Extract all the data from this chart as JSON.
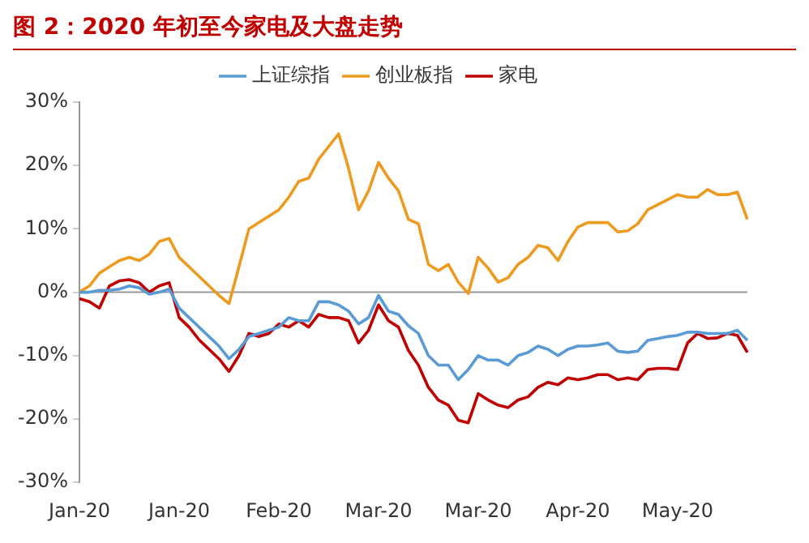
{
  "chart_data": {
    "type": "line",
    "title": "图 2：2020 年初至今家电及大盘走势",
    "categories": [
      "Jan-20",
      null,
      null,
      null,
      null,
      null,
      null,
      null,
      null,
      null,
      "Jan-20",
      null,
      null,
      null,
      null,
      null,
      null,
      null,
      null,
      null,
      "Feb-20",
      null,
      null,
      null,
      null,
      null,
      null,
      null,
      null,
      null,
      "Mar-20",
      null,
      null,
      null,
      null,
      null,
      null,
      null,
      null,
      null,
      "Mar-20",
      null,
      null,
      null,
      null,
      null,
      null,
      null,
      null,
      null,
      "Apr-20",
      null,
      null,
      null,
      null,
      null,
      null,
      null,
      null,
      null,
      "May-20",
      null,
      null,
      null,
      null,
      null,
      null,
      null
    ],
    "series": [
      {
        "name": "上证综指",
        "color": "#5b9bd5",
        "values": [
          0,
          0,
          0.3,
          0.3,
          0.5,
          1,
          0.7,
          -0.3,
          0,
          0.5,
          -2.5,
          -4,
          -5.5,
          -7,
          -8.5,
          -10.5,
          -9,
          -7,
          -6.5,
          -6,
          -5.5,
          -4,
          -4.5,
          -4.5,
          -1.5,
          -1.5,
          -2,
          -3,
          -5,
          -4,
          -0.5,
          -3,
          -3.5,
          -5.3,
          -6.5,
          -10,
          -11.5,
          -11.5,
          -13.8,
          -12.2,
          -10,
          -10.7,
          -10.7,
          -11.5,
          -10,
          -9.5,
          -8.5,
          -9,
          -10,
          -9,
          -8.5,
          -8.5,
          -8.3,
          -8,
          -9.3,
          -9.5,
          -9.3,
          -7.6,
          -7.3,
          -7,
          -6.8,
          -6.3,
          -6.3,
          -6.5,
          -6.5,
          -6.5,
          -6,
          -7.6
        ]
      },
      {
        "name": "创业板指",
        "color": "#ed9b1f",
        "values": [
          0,
          1,
          3,
          4,
          5,
          5.5,
          5,
          6,
          8,
          8.5,
          5.5,
          4,
          2.5,
          1,
          -0.5,
          -1.8,
          4,
          10,
          11,
          12,
          13,
          15,
          17.5,
          18,
          21,
          23,
          25,
          19.5,
          13,
          16,
          20.5,
          18,
          16,
          11.5,
          10.8,
          4.4,
          3.4,
          4.4,
          1.6,
          -0.2,
          5.5,
          3.8,
          1.6,
          2.3,
          4.4,
          5.5,
          7.4,
          7,
          5,
          8,
          10.3,
          11,
          11,
          11,
          9.5,
          9.7,
          10.8,
          13,
          13.8,
          14.6,
          15.4,
          15,
          15,
          16.2,
          15.4,
          15.4,
          15.8,
          11.5
        ]
      },
      {
        "name": "家电",
        "color": "#c00000",
        "values": [
          -1,
          -1.5,
          -2.5,
          1,
          1.8,
          2,
          1.5,
          0,
          1,
          1.5,
          -4,
          -5.5,
          -7.5,
          -9,
          -10.5,
          -12.5,
          -10,
          -6.5,
          -7,
          -6.5,
          -5,
          -5.5,
          -4.5,
          -5.5,
          -3.5,
          -4,
          -4,
          -4.5,
          -8,
          -6,
          -2,
          -4.5,
          -5.5,
          -9.2,
          -11.5,
          -15,
          -17,
          -17.8,
          -20.2,
          -20.6,
          -16,
          -17,
          -17.8,
          -18.2,
          -17,
          -16.5,
          -15,
          -14.2,
          -14.6,
          -13.5,
          -13.8,
          -13.5,
          -13,
          -13,
          -13.8,
          -13.5,
          -13.8,
          -12.2,
          -12,
          -12,
          -12.2,
          -8,
          -6.5,
          -7.3,
          -7.2,
          -6.5,
          -6.8,
          -9.5
        ]
      }
    ],
    "ylim": [
      -30,
      30
    ],
    "yticks": [
      {
        "value": -30,
        "label": "-30%"
      },
      {
        "value": -20,
        "label": "-20%"
      },
      {
        "value": -10,
        "label": "-10%"
      },
      {
        "value": 0,
        "label": "0%"
      },
      {
        "value": 10,
        "label": "10%"
      },
      {
        "value": 20,
        "label": "20%"
      },
      {
        "value": 30,
        "label": "30%"
      }
    ],
    "ref_lines": [
      {
        "axis": "y",
        "value": 0
      }
    ],
    "legend": "top",
    "grid": false,
    "marker": "none",
    "line_style": "solid"
  }
}
